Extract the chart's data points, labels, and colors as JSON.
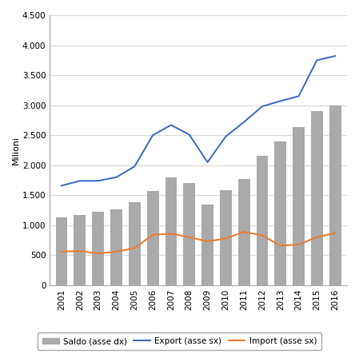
{
  "years": [
    2001,
    2002,
    2003,
    2004,
    2005,
    2006,
    2007,
    2008,
    2009,
    2010,
    2011,
    2012,
    2013,
    2014,
    2015,
    2016
  ],
  "saldo_bars": [
    1130,
    1175,
    1220,
    1260,
    1380,
    1575,
    1800,
    1700,
    1340,
    1590,
    1775,
    2150,
    2390,
    2640,
    2900,
    3000
  ],
  "export_line": [
    1660,
    1740,
    1740,
    1800,
    1980,
    2500,
    2670,
    2510,
    2050,
    2480,
    2720,
    2980,
    3070,
    3150,
    3750,
    3820
  ],
  "import_line": [
    560,
    570,
    530,
    560,
    620,
    840,
    860,
    800,
    730,
    780,
    890,
    830,
    660,
    680,
    800,
    870
  ],
  "bar_color": "#aaaaaa",
  "export_color": "#4472c4",
  "import_color": "#ed7d31",
  "ylabel_left": "Milioni",
  "ylim": [
    0,
    4500
  ],
  "yticks": [
    0,
    500,
    1000,
    1500,
    2000,
    2500,
    3000,
    3500,
    4000,
    4500
  ],
  "ytick_labels": [
    "0",
    "500",
    "1.000",
    "1.500",
    "2.000",
    "2.500",
    "3.000",
    "3.500",
    "4.000",
    "4.500"
  ],
  "legend_labels": [
    "Saldo (asse dx)",
    "Export (asse sx)",
    "Import (asse sx)"
  ],
  "grid_color": "#d9d9d9",
  "spine_color": "#aaaaaa"
}
